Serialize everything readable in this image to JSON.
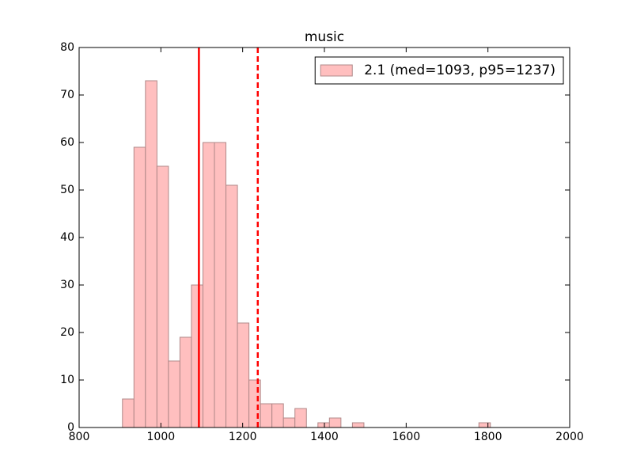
{
  "chart_data": {
    "type": "histogram",
    "title": "music",
    "bins": [
      906,
      934.125,
      962.25,
      990.375,
      1018.5,
      1046.625,
      1074.75,
      1102.875,
      1131,
      1159.125,
      1187.25,
      1215.375,
      1243.5,
      1271.625,
      1299.75,
      1327.875,
      1356,
      1384.125,
      1412.25,
      1440.375,
      1468.5,
      1496.625,
      1524.75,
      1552.875,
      1581,
      1609.125,
      1637.25,
      1665.375,
      1693.5,
      1721.625,
      1749.75,
      1777.875,
      1806
    ],
    "series": [
      {
        "name": "2.1 (med=1093, p95=1237)",
        "color": "#ffbfbf",
        "edgecolor": "#b08888",
        "values": [
          6,
          59,
          73,
          55,
          14,
          19,
          30,
          60,
          60,
          51,
          22,
          10,
          5,
          5,
          2,
          4,
          0,
          1,
          2,
          0,
          1,
          0,
          0,
          0,
          0,
          0,
          0,
          0,
          0,
          0,
          0,
          1
        ]
      }
    ],
    "vlines": [
      {
        "value": 1093,
        "style": "solid",
        "color": "#ff0000"
      },
      {
        "value": 1237,
        "style": "dashed",
        "color": "#ff0000"
      }
    ],
    "xlim": [
      800,
      2000
    ],
    "xticks": [
      800,
      1000,
      1200,
      1400,
      1600,
      1800,
      2000
    ],
    "ylim": [
      0,
      80
    ],
    "yticks": [
      0,
      10,
      20,
      30,
      40,
      50,
      60,
      70,
      80
    ],
    "legend": "upper right"
  }
}
